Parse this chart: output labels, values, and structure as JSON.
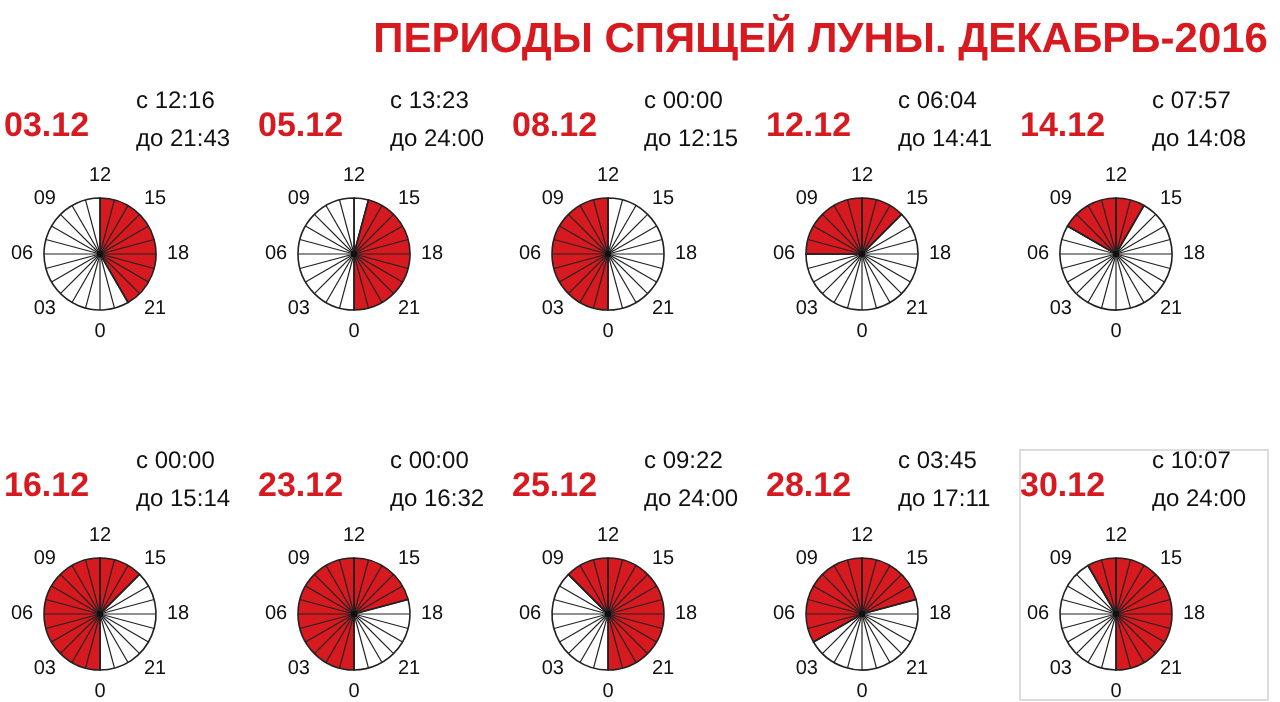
{
  "chart_data": [
    {
      "type": "pie",
      "title": "03.12",
      "annotations": [
        "ПЕРИОДЫ СПЯЩЕЙ ЛУНЫ. ДЕКАБРЬ-2016",
        "с 12:16",
        "до 21:43",
        "12",
        "15",
        "18",
        "21",
        "0",
        "03",
        "06",
        "09"
      ],
      "categories": [
        null,
        null
      ],
      "values": [
        41.667,
        58.333
      ],
      "colors": [
        "#d71920",
        "#ffffff"
      ]
    },
    {
      "type": "pie",
      "title": "05.12",
      "annotations": [
        "с 13:23",
        "до 24:00",
        "12",
        "15",
        "18",
        "21",
        "0",
        "03",
        "06",
        "09"
      ],
      "categories": [
        null,
        null,
        null
      ],
      "values": [
        4.167,
        45.833,
        50
      ],
      "colors": [
        "#ffffff",
        "#d71920",
        "#ffffff"
      ]
    },
    {
      "type": "pie",
      "title": "08.12",
      "annotations": [
        "с 00:00",
        "до 12:15",
        "12",
        "15",
        "18",
        "21",
        "0",
        "03",
        "06",
        "09"
      ],
      "categories": [
        null,
        null
      ],
      "values": [
        50,
        50
      ],
      "colors": [
        "#ffffff",
        "#d71920"
      ]
    },
    {
      "type": "pie",
      "title": "12.12",
      "annotations": [
        "с 06:04",
        "до 14:41",
        "12",
        "15",
        "18",
        "21",
        "0",
        "03",
        "06",
        "09"
      ],
      "categories": [
        null,
        null,
        null
      ],
      "values": [
        12.5,
        62.5,
        25
      ],
      "colors": [
        "#d71920",
        "#ffffff",
        "#d71920"
      ]
    },
    {
      "type": "pie",
      "title": "14.12",
      "annotations": [
        "с 07:57",
        "до 14:08",
        "12",
        "15",
        "18",
        "21",
        "0",
        "03",
        "06",
        "09"
      ],
      "categories": [
        null,
        null,
        null
      ],
      "values": [
        8.333,
        75,
        16.667
      ],
      "colors": [
        "#d71920",
        "#ffffff",
        "#d71920"
      ]
    },
    {
      "type": "pie",
      "title": "16.12",
      "annotations": [
        "с 00:00",
        "до 15:14",
        "12",
        "15",
        "18",
        "21",
        "0",
        "03",
        "06",
        "09"
      ],
      "categories": [
        null,
        null,
        null
      ],
      "values": [
        12.5,
        37.5,
        50
      ],
      "colors": [
        "#d71920",
        "#ffffff",
        "#d71920"
      ]
    },
    {
      "type": "pie",
      "title": "23.12",
      "annotations": [
        "с 00:00",
        "до 16:32",
        "12",
        "15",
        "18",
        "21",
        "0",
        "03",
        "06",
        "09"
      ],
      "categories": [
        null,
        null,
        null
      ],
      "values": [
        20.833,
        29.167,
        50
      ],
      "colors": [
        "#d71920",
        "#ffffff",
        "#d71920"
      ]
    },
    {
      "type": "pie",
      "title": "25.12",
      "annotations": [
        "с 09:22",
        "до 24:00",
        "12",
        "15",
        "18",
        "21",
        "0",
        "03",
        "06",
        "09"
      ],
      "categories": [
        null,
        null,
        null
      ],
      "values": [
        50,
        37.5,
        12.5
      ],
      "colors": [
        "#d71920",
        "#ffffff",
        "#d71920"
      ]
    },
    {
      "type": "pie",
      "title": "28.12",
      "annotations": [
        "с 03:45",
        "до 17:11",
        "12",
        "15",
        "18",
        "21",
        "0",
        "03",
        "06",
        "09"
      ],
      "categories": [
        null,
        null,
        null
      ],
      "values": [
        20.833,
        45.833,
        33.333
      ],
      "colors": [
        "#d71920",
        "#ffffff",
        "#d71920"
      ]
    },
    {
      "type": "pie",
      "title": "30.12",
      "annotations": [
        "с 10:07",
        "до 24:00",
        "12",
        "15",
        "18",
        "21",
        "0",
        "03",
        "06",
        "09"
      ],
      "categories": [
        null,
        null,
        null
      ],
      "values": [
        50,
        41.667,
        8.333
      ],
      "colors": [
        "#d71920",
        "#ffffff",
        "#d71920"
      ]
    }
  ]
}
